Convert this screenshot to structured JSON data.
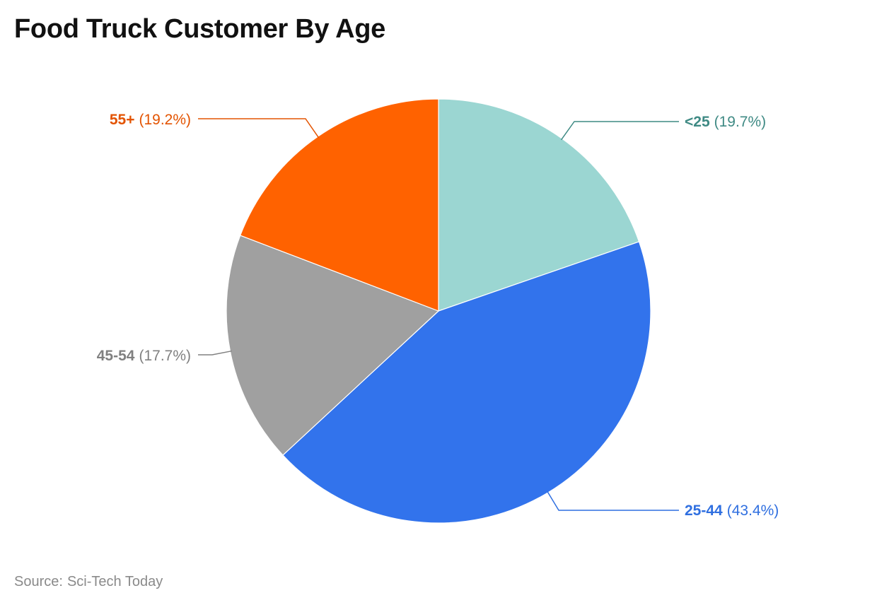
{
  "title": "Food Truck Customer By Age",
  "source": {
    "label": "Source:",
    "name": "Sci-Tech Today"
  },
  "chart_data": {
    "type": "pie",
    "title": "Food Truck Customer By Age",
    "unit": "%",
    "slices": [
      {
        "label": "<25",
        "value": 19.7,
        "display": "(19.7%)",
        "color": "#9bd6d2",
        "text_color": "#3f8a84"
      },
      {
        "label": "25-44",
        "value": 43.4,
        "display": "(43.4%)",
        "color": "#3273ec",
        "text_color": "#2f6fe0"
      },
      {
        "label": "45-54",
        "value": 17.7,
        "display": "(17.7%)",
        "color": "#a0a0a0",
        "text_color": "#808080"
      },
      {
        "label": "55+",
        "value": 19.2,
        "display": "(19.2%)",
        "color": "#ff6200",
        "text_color": "#e35300"
      }
    ],
    "start_angle": "12 o'clock",
    "direction": "clockwise"
  }
}
